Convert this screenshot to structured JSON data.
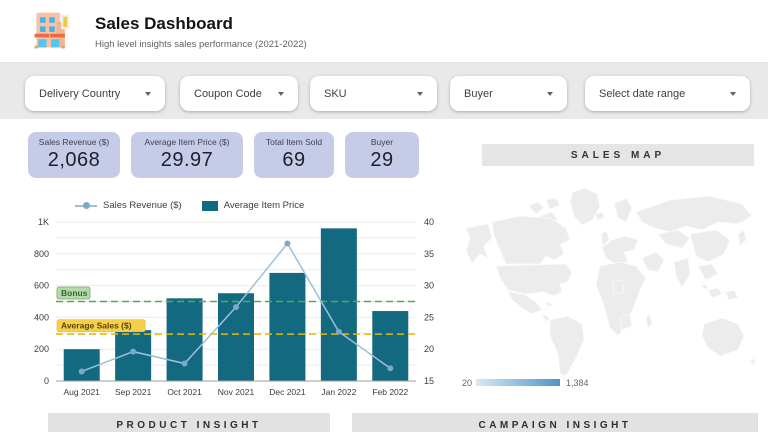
{
  "header": {
    "title": "Sales Dashboard",
    "subtitle": "High level insights sales performance (2021-2022)",
    "logo": "storefront-icon"
  },
  "filters": [
    {
      "label": "Delivery Country"
    },
    {
      "label": "Coupon Code"
    },
    {
      "label": "SKU"
    },
    {
      "label": "Buyer"
    },
    {
      "label": "Select date range"
    }
  ],
  "kpis": [
    {
      "label": "Sales Revenue ($)",
      "value": "2,068"
    },
    {
      "label": "Average Item Price ($)",
      "value": "29.97"
    },
    {
      "label": "Total Item Sold",
      "value": "69"
    },
    {
      "label": "Buyer",
      "value": "29"
    }
  ],
  "chart_data": {
    "type": "combo-bar-line",
    "categories": [
      "Aug 2021",
      "Sep 2021",
      "Oct 2021",
      "Nov 2021",
      "Dec 2021",
      "Jan 2022",
      "Feb 2022"
    ],
    "series": [
      {
        "name": "Sales Revenue ($)",
        "type": "line",
        "axis": "left",
        "color": "#9dc0dc",
        "dot_color": "#7aa9cc",
        "values": [
          60,
          185,
          110,
          465,
          865,
          310,
          80
        ]
      },
      {
        "name": "Average Item Price",
        "type": "bar",
        "axis": "right",
        "color": "#136980",
        "values": [
          20,
          23,
          28,
          28.8,
          32,
          39,
          26
        ]
      }
    ],
    "left_axis": {
      "min": 0,
      "max": 1000,
      "tick_step": 200,
      "grid_step": 100,
      "labels": [
        "0",
        "200",
        "400",
        "600",
        "800",
        "1K"
      ]
    },
    "right_axis": {
      "min": 15,
      "max": 40,
      "tick_step": 5,
      "labels": [
        "15",
        "20",
        "25",
        "30",
        "35",
        "40"
      ]
    },
    "reference_lines": [
      {
        "label": "Bonus",
        "value": 500,
        "line_color": "#58a55c",
        "bg": "#b5d9aa",
        "border": "#74ab68",
        "text_color": "#2f6b2f"
      },
      {
        "label": "Average Sales ($)",
        "value": 295,
        "line_color": "#e5b910",
        "bg": "#f6cf4d",
        "border": "#edc33a",
        "text_color": "#5a4500"
      }
    ],
    "legend_position": "top",
    "grid": true
  },
  "map": {
    "section_title": "SALES MAP",
    "legend_min": "20",
    "legend_max": "1,384",
    "colors": {
      "high": "#5b9dc6",
      "light": "#cfe2f0",
      "lighter": "#dcebf5",
      "none": "#ececec",
      "grad_start": "#d9e9f4",
      "grad_end": "#4e96c5"
    }
  },
  "sections": {
    "product_insight": "PRODUCT INSIGHT",
    "campaign_insight": "CAMPAIGN INSIGHT"
  }
}
